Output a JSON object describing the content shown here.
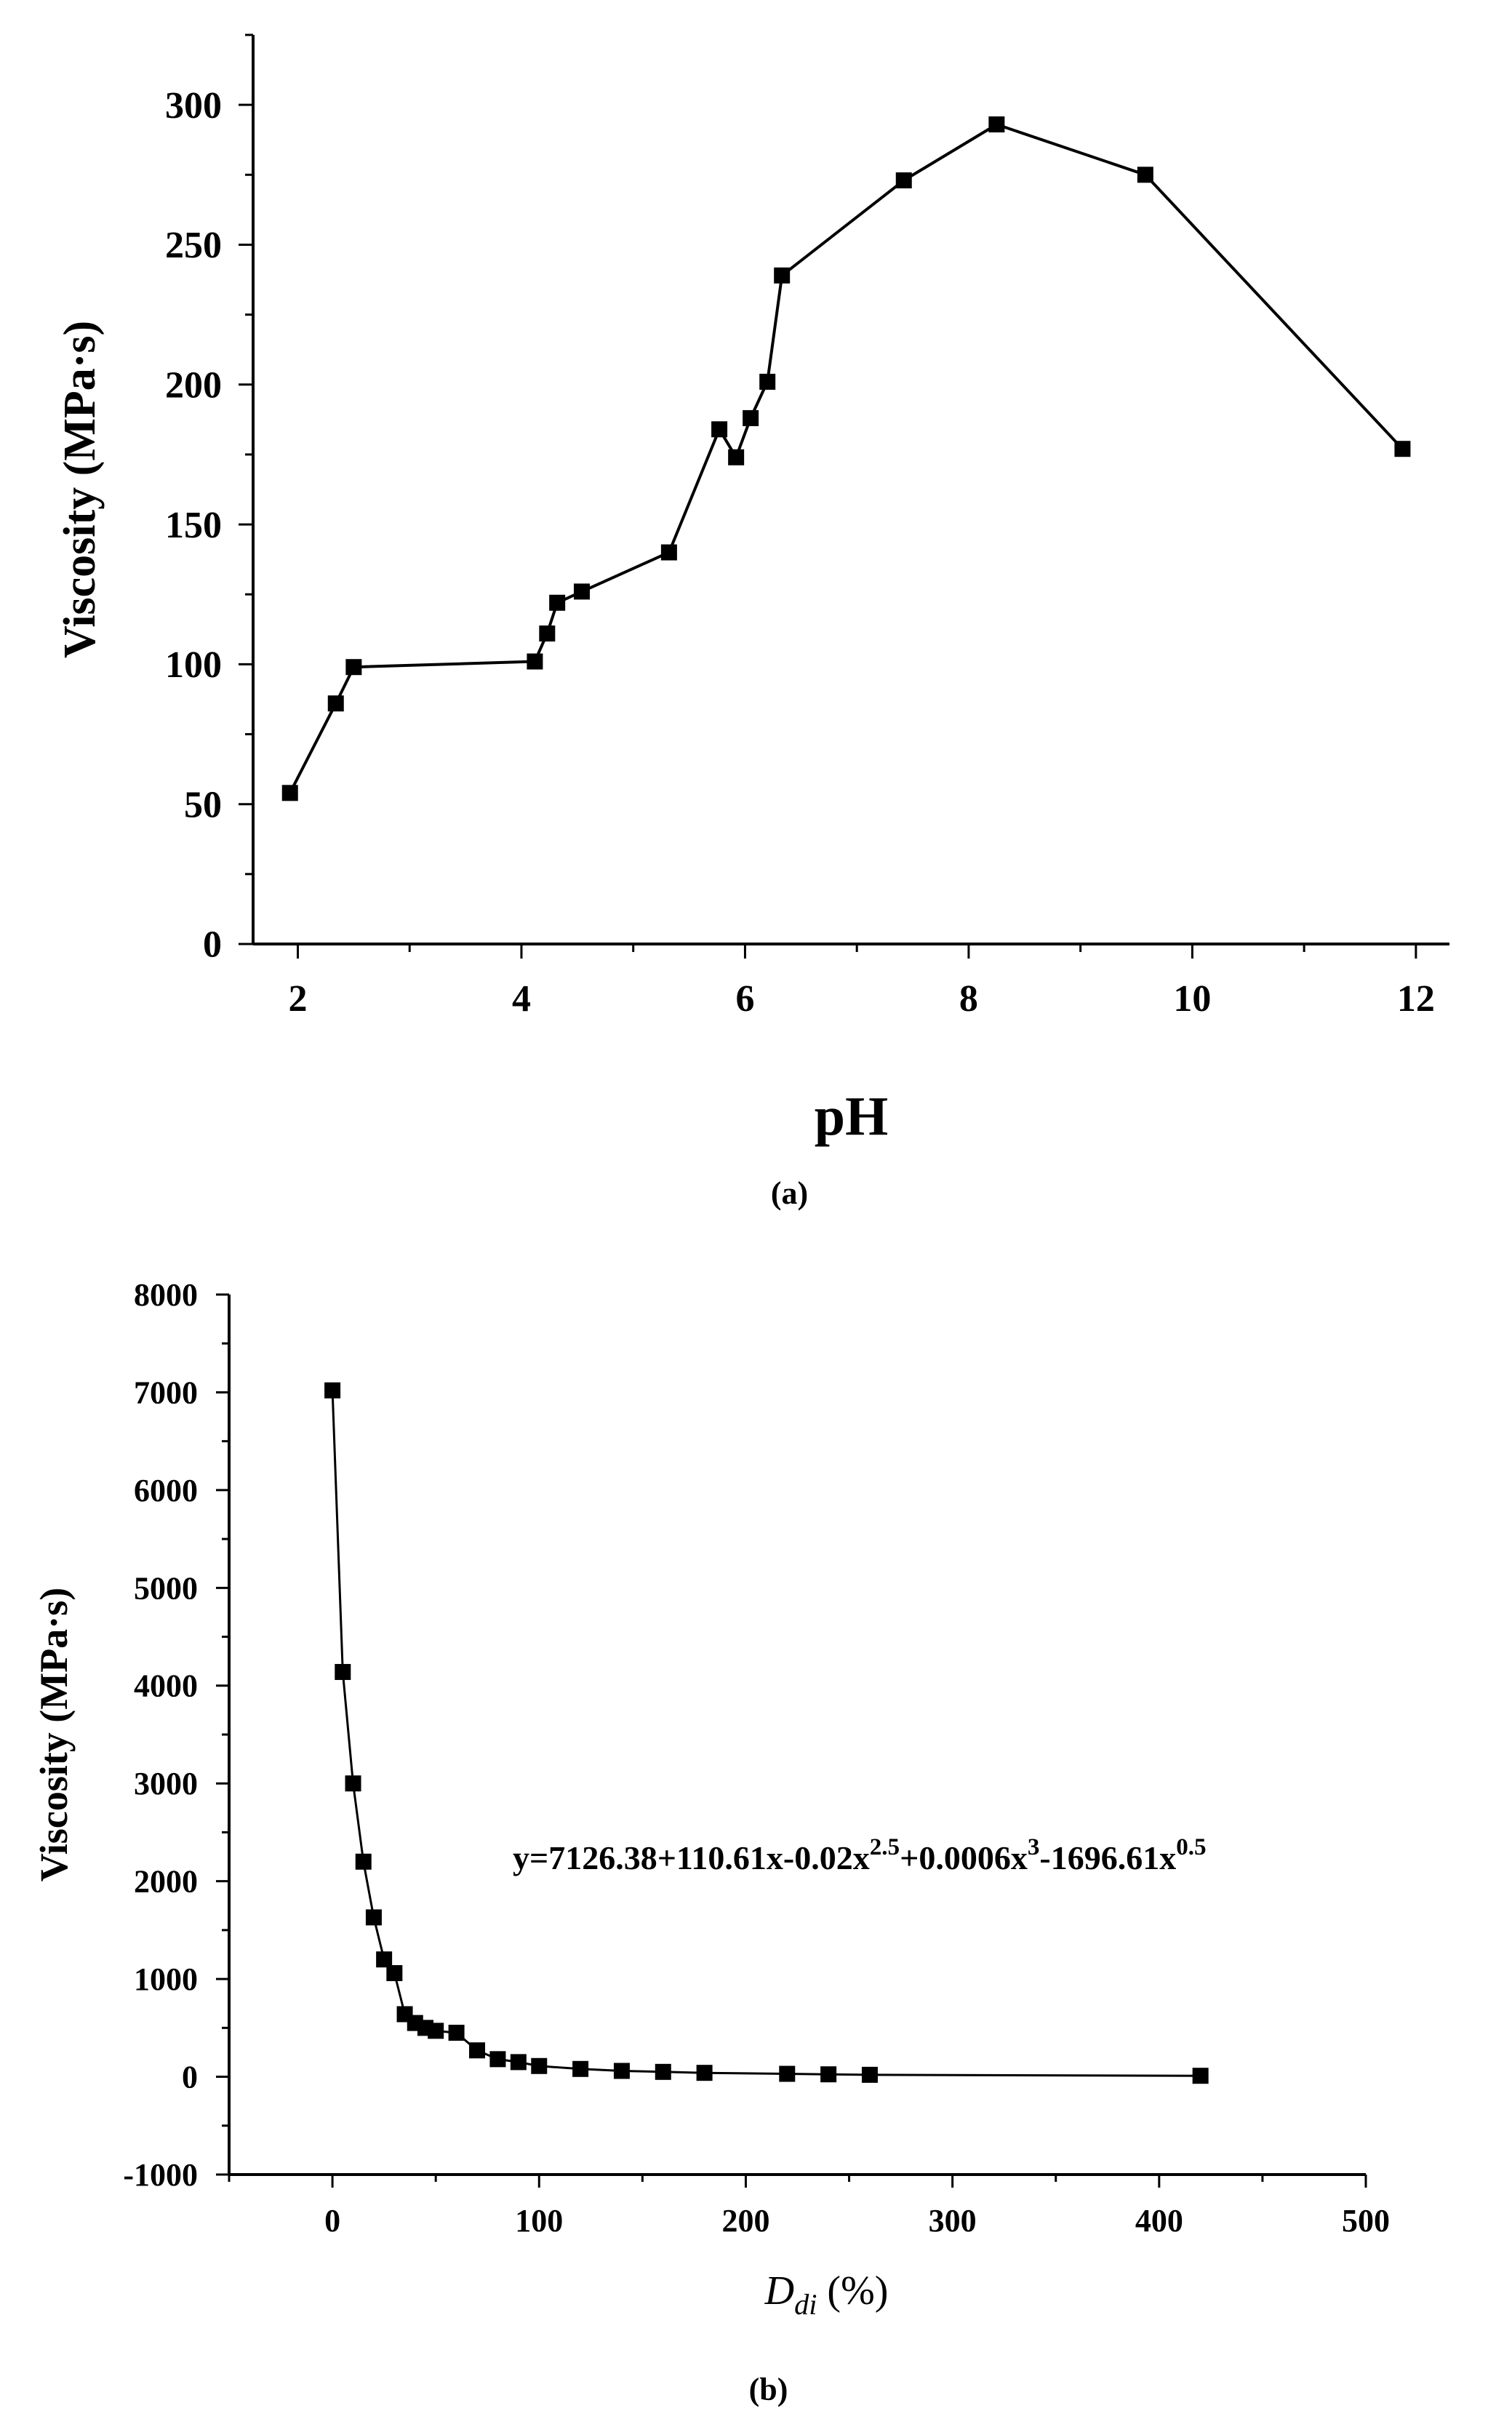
{
  "chart_data": [
    {
      "type": "line",
      "marker": "square",
      "xlabel": "pH",
      "ylabel": "Viscosity (MPa·s)",
      "caption": "(a)",
      "xlim": [
        1.6,
        12.3
      ],
      "ylim": [
        0,
        325
      ],
      "xticks": [
        2,
        4,
        6,
        8,
        10,
        12
      ],
      "yticks": [
        0,
        50,
        100,
        150,
        200,
        250,
        300
      ],
      "grid": false,
      "series": [
        {
          "x": [
            1.93,
            2.34,
            2.5,
            4.12,
            4.23,
            4.32,
            4.54,
            5.32,
            5.77,
            5.92,
            6.05,
            6.2,
            6.33,
            7.42,
            8.25,
            9.58,
            11.88
          ],
          "y": [
            54,
            86,
            99,
            101,
            111,
            122,
            126,
            140,
            184,
            174,
            188,
            201,
            239,
            273,
            293,
            275,
            177
          ]
        }
      ]
    },
    {
      "type": "line",
      "marker": "square",
      "xlabel_main": "D",
      "xlabel_sub": "di",
      "xlabel_unit": " (%)",
      "ylabel": "Viscosity (MPa·s)",
      "caption": "(b)",
      "xlim": [
        -50,
        500
      ],
      "ylim": [
        -1000,
        8000
      ],
      "xticks": [
        0,
        100,
        200,
        300,
        400,
        500
      ],
      "yticks": [
        -1000,
        0,
        1000,
        2000,
        3000,
        4000,
        5000,
        6000,
        7000,
        8000
      ],
      "grid": false,
      "annotation": {
        "parts": [
          {
            "text": "y=7126.38+110.61x-0.02x",
            "sup": false
          },
          {
            "text": "2.5",
            "sup": true
          },
          {
            "text": "+0.0006x",
            "sup": false
          },
          {
            "text": "3",
            "sup": true
          },
          {
            "text": "-1696.61x",
            "sup": false
          },
          {
            "text": "0.5",
            "sup": true
          }
        ]
      },
      "series": [
        {
          "x": [
            0,
            5,
            10,
            15,
            20,
            25,
            30,
            35,
            40,
            45,
            50,
            60,
            70,
            80,
            90,
            100,
            120,
            140,
            160,
            180,
            220,
            240,
            260,
            420
          ],
          "y": [
            7020,
            4140,
            3000,
            2200,
            1630,
            1200,
            1060,
            640,
            550,
            500,
            470,
            450,
            270,
            180,
            150,
            110,
            80,
            60,
            50,
            40,
            30,
            25,
            20,
            10
          ]
        }
      ]
    }
  ]
}
